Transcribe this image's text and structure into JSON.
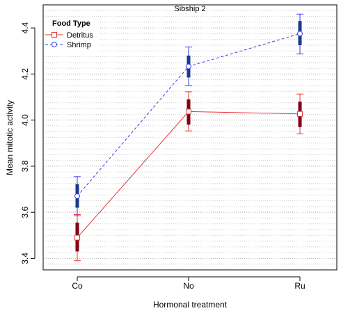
{
  "chart_data": {
    "type": "line",
    "title": "Sibship 2",
    "xlabel": "Hormonal treatment",
    "ylabel": "Mean mitotic activity",
    "categories": [
      "Co",
      "No",
      "Ru"
    ],
    "ylim": [
      3.35,
      4.5
    ],
    "yticks": [
      "3.4",
      "3.6",
      "3.8",
      "4.0",
      "4.2",
      "4.4"
    ],
    "grid": true,
    "legend_position": "top-left",
    "legend_title": "Food Type",
    "series": [
      {
        "name": "Detritus",
        "color": "#e8343a",
        "bar_color": "#800015",
        "line_style": "solid",
        "marker": "square",
        "values": [
          3.49,
          4.037,
          4.027
        ],
        "ci_outer": [
          [
            3.39,
            3.59
          ],
          [
            3.953,
            4.123
          ],
          [
            3.94,
            4.113
          ]
        ],
        "ci_inner": [
          [
            3.43,
            3.555
          ],
          [
            3.98,
            4.09
          ],
          [
            3.97,
            4.08
          ]
        ]
      },
      {
        "name": "Shrimp",
        "color": "#3a3aee",
        "bar_color": "#1a3a8a",
        "line_style": "dashed",
        "marker": "circle",
        "values": [
          3.67,
          4.233,
          4.375
        ],
        "ci_outer": [
          [
            3.585,
            3.755
          ],
          [
            4.15,
            4.317
          ],
          [
            4.287,
            4.46
          ]
        ],
        "ci_inner": [
          [
            3.62,
            3.722
          ],
          [
            4.185,
            4.28
          ],
          [
            4.325,
            4.43
          ]
        ]
      }
    ]
  }
}
